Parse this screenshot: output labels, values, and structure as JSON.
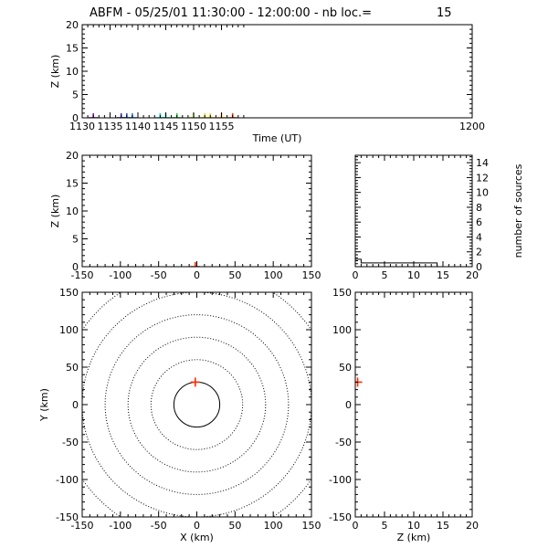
{
  "header": {
    "title": "ABFM - 05/25/01 11:30:00 - 12:00:00 - nb loc.=",
    "count": "15"
  },
  "colors": {
    "axes": "#000000",
    "rings": "#000000",
    "histogram": "#000000",
    "latest_source": "#ff2a00"
  },
  "chart_data": [
    {
      "id": "time-height",
      "type": "scatter",
      "xlabel": "Time (UT)",
      "ylabel": "Z (km)",
      "xlim": [
        1130,
        1200
      ],
      "ylim": [
        0,
        20
      ],
      "x_ticks": [
        "1130",
        "1135",
        "1140",
        "1145",
        "1150",
        "1155",
        "1200"
      ],
      "y_ticks": [
        "0",
        "5",
        "10",
        "15",
        "20"
      ],
      "marker": "plus",
      "points": [
        {
          "x": 1132.0,
          "y": 0,
          "color": "#7a1fa8"
        },
        {
          "x": 1137.0,
          "y": 0,
          "color": "#3a2fc8"
        },
        {
          "x": 1138.0,
          "y": 0,
          "color": "#2d4fe0"
        },
        {
          "x": 1139.0,
          "y": 0,
          "color": "#2277ee"
        },
        {
          "x": 1144.0,
          "y": 0,
          "color": "#00c8c8"
        },
        {
          "x": 1145.0,
          "y": 0,
          "color": "#00d8a0"
        },
        {
          "x": 1147.0,
          "y": 0,
          "color": "#22cc33"
        },
        {
          "x": 1150.0,
          "y": 0,
          "color": "#88dd22"
        },
        {
          "x": 1152.0,
          "y": 0,
          "color": "#dddd00"
        },
        {
          "x": 1153.0,
          "y": 0,
          "color": "#eecc00"
        },
        {
          "x": 1155.0,
          "y": 0,
          "color": "#ee9900"
        },
        {
          "x": 1157.0,
          "y": 0,
          "color": "#ff2a00"
        }
      ]
    },
    {
      "id": "x-height",
      "type": "scatter",
      "xlabel": "",
      "ylabel": "Z (km)",
      "xlim": [
        -150,
        150
      ],
      "ylim": [
        0,
        20
      ],
      "x_ticks": [
        "-150",
        "-100",
        "-50",
        "0",
        "50",
        "100",
        "150"
      ],
      "y_ticks": [
        "0",
        "5",
        "10",
        "15",
        "20"
      ],
      "marker": "plus",
      "points": [
        {
          "x": -2,
          "y": 0,
          "color": "#ff2a00"
        }
      ]
    },
    {
      "id": "height-histogram",
      "type": "histogram",
      "xlabel": "",
      "ylabel": "number of sources",
      "xlim": [
        0,
        20
      ],
      "ylim": [
        0,
        15
      ],
      "x_ticks": [
        "0",
        "5",
        "10",
        "15",
        "20"
      ],
      "y_ticks": [
        "0",
        "2",
        "4",
        "6",
        "8",
        "10",
        "12",
        "14"
      ],
      "bins": [
        {
          "z_from": 0.0,
          "z_to": 0.5,
          "count": 14
        },
        {
          "z_from": 0.5,
          "z_to": 1.0,
          "count": 1
        },
        {
          "z_from": 1.0,
          "z_to": 20.0,
          "count": 0
        }
      ]
    },
    {
      "id": "plan-view",
      "type": "scatter",
      "xlabel": "X (km)",
      "ylabel": "Y (km)",
      "xlim": [
        -150,
        150
      ],
      "ylim": [
        -150,
        150
      ],
      "x_ticks": [
        "-150",
        "-100",
        "-50",
        "0",
        "50",
        "100",
        "150"
      ],
      "y_ticks": [
        "-150",
        "-100",
        "-50",
        "0",
        "50",
        "100",
        "150"
      ],
      "range_rings_km": [
        30,
        60,
        90,
        120,
        150,
        180
      ],
      "solid_ring_km": 30,
      "marker": "plus",
      "points": [
        {
          "x": -2,
          "y": 30,
          "color": "#ff2a00"
        }
      ]
    },
    {
      "id": "height-y",
      "type": "scatter",
      "xlabel": "Z (km)",
      "ylabel": "",
      "xlim": [
        0,
        20
      ],
      "ylim": [
        -150,
        150
      ],
      "x_ticks": [
        "0",
        "5",
        "10",
        "15",
        "20"
      ],
      "y_ticks": [
        "-150",
        "-100",
        "-50",
        "0",
        "50",
        "100",
        "150"
      ],
      "marker": "plus",
      "points": [
        {
          "x": 0.4,
          "y": 30,
          "color": "#ff2a00"
        }
      ]
    }
  ]
}
